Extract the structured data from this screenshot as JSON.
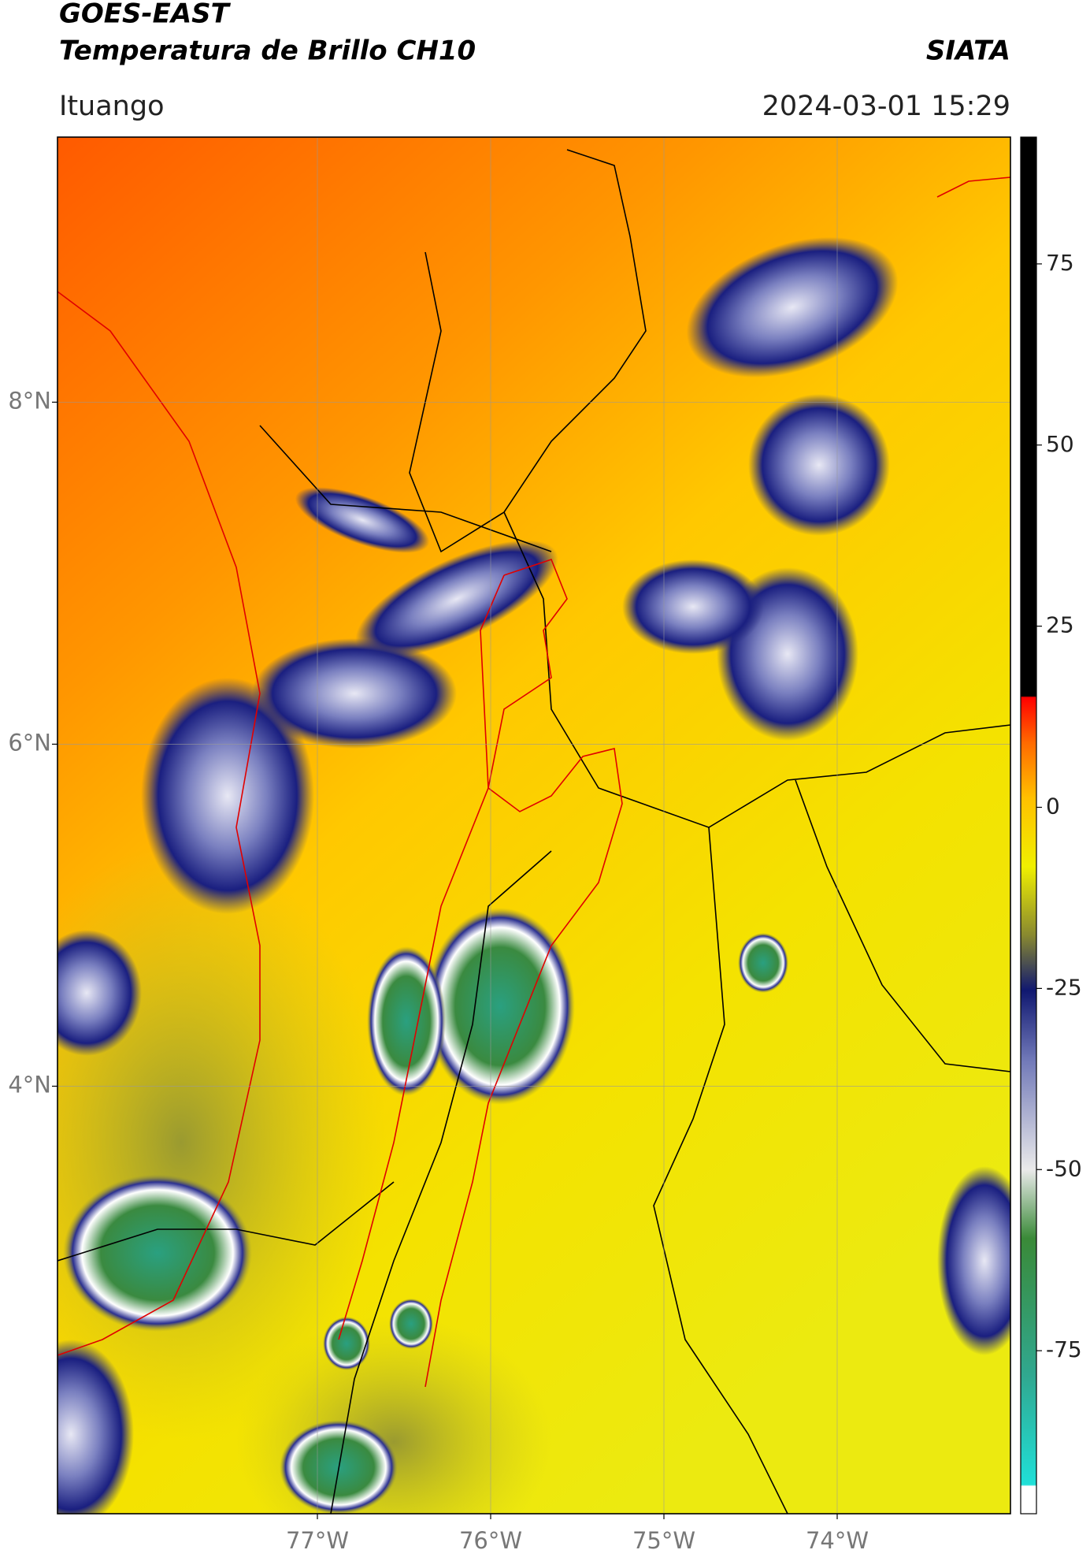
{
  "header": {
    "title": "GOES-EAST",
    "subtitle": "Temperatura de Brillo CH10",
    "source": "SIATA",
    "location": "Ituango",
    "datetime": "2024-03-01 15:29"
  },
  "map": {
    "xlim": [
      -78.5,
      -73
    ],
    "ylim": [
      1.5,
      9.55
    ],
    "xticks": [
      {
        "value": -77,
        "label": "77°W"
      },
      {
        "value": -76,
        "label": "76°W"
      },
      {
        "value": -75,
        "label": "75°W"
      },
      {
        "value": -74,
        "label": "74°W"
      }
    ],
    "yticks": [
      {
        "value": 4,
        "label": "4°N"
      },
      {
        "value": 6,
        "label": "6°N"
      },
      {
        "value": 8,
        "label": "8°N"
      }
    ]
  },
  "colorbar": {
    "lim": [
      -97.5,
      92.5
    ],
    "ticks": [
      -75,
      -50,
      -25,
      0,
      25,
      50,
      75
    ]
  }
}
